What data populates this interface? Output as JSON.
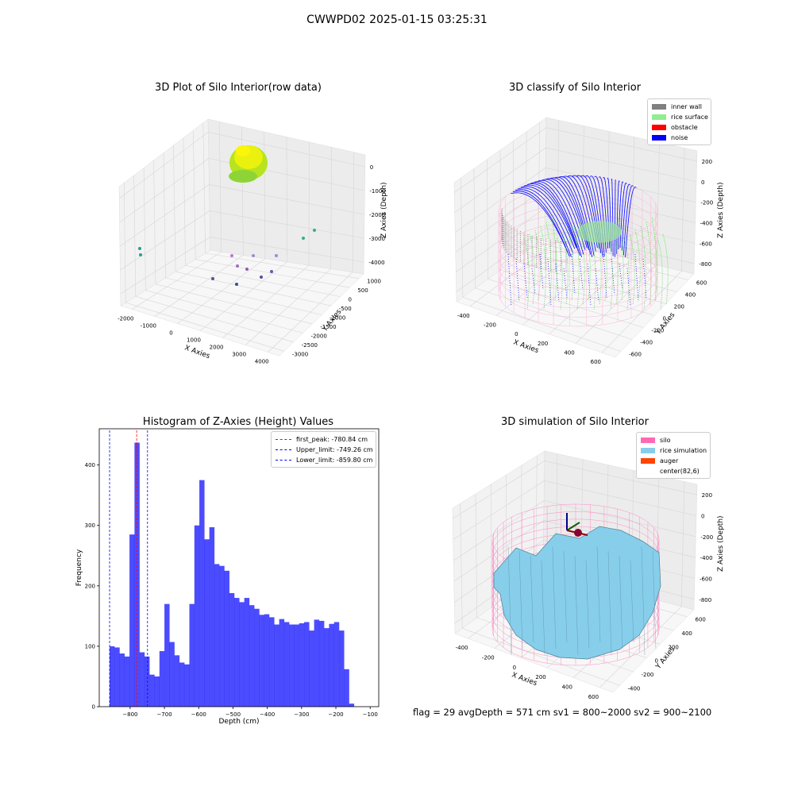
{
  "suptitle": "CWWPD02 2025-01-15 03:25:31",
  "panels": {
    "raw": {
      "title": "3D Plot of Silo Interior(row data)",
      "xlabel": "X Axies",
      "ylabel": "Y Axies",
      "zlabel": "Z Axies (Depth)",
      "xticks": [
        "-2000",
        "-1000",
        "0",
        "1000",
        "2000",
        "3000",
        "4000"
      ],
      "yticks": [
        "1000",
        "500",
        "0",
        "-500",
        "-1000",
        "-1500",
        "-2000",
        "-2500",
        "-3000"
      ],
      "zticks": [
        "0",
        "-1000",
        "-2000",
        "-3000",
        "-4000"
      ]
    },
    "classify": {
      "title": "3D classify of Silo Interior",
      "xlabel": "X Axies",
      "ylabel": "Y Axies",
      "zlabel": "Z Axies (Depth)",
      "xticks": [
        "-400",
        "-200",
        "0",
        "200",
        "400",
        "600"
      ],
      "yticks": [
        "600",
        "400",
        "200",
        "0",
        "-200",
        "-400",
        "-600"
      ],
      "zticks": [
        "200",
        "0",
        "-200",
        "-400",
        "-600",
        "-800"
      ],
      "legend": [
        {
          "label": "inner wall",
          "color": "#808080"
        },
        {
          "label": "rice surface",
          "color": "#90ee90"
        },
        {
          "label": "obstacle",
          "color": "#ff0000"
        },
        {
          "label": "noise",
          "color": "#0000ff"
        }
      ]
    },
    "simulation": {
      "title": "3D simulation of Silo Interior",
      "xlabel": "X Axies",
      "ylabel": "Y Axies",
      "zlabel": "Z Axies (Depth)",
      "xticks": [
        "-400",
        "-200",
        "0",
        "200",
        "400",
        "600"
      ],
      "yticks": [
        "600",
        "400",
        "200",
        "0",
        "-200",
        "-400"
      ],
      "zticks": [
        "200",
        "0",
        "-200",
        "-400",
        "-600",
        "-800"
      ],
      "legend": [
        {
          "label": "silo",
          "color": "#ff69b4"
        },
        {
          "label": "rice simulation",
          "color": "#87ceeb"
        },
        {
          "label": "auger",
          "color": "#ff4500"
        },
        {
          "label": "center(82,6)",
          "color": ""
        }
      ]
    }
  },
  "chart_data": {
    "type": "bar",
    "title": "Histogram of Z-Axies (Height) Values",
    "xlabel": "Depth (cm)",
    "ylabel": "Frequency",
    "xlim": [
      -890,
      -75
    ],
    "ylim": [
      0,
      460
    ],
    "xticks": [
      -800,
      -700,
      -600,
      -500,
      -400,
      -300,
      -200,
      -100
    ],
    "yticks": [
      0,
      100,
      200,
      300,
      400
    ],
    "bar_color": "#0000ff",
    "bin_start": -860,
    "bin_width": 14.55,
    "values": [
      100,
      98,
      88,
      83,
      285,
      437,
      90,
      83,
      53,
      50,
      92,
      170,
      107,
      85,
      73,
      70,
      170,
      300,
      375,
      277,
      297,
      236,
      233,
      225,
      188,
      180,
      173,
      180,
      168,
      162,
      152,
      153,
      148,
      136,
      145,
      140,
      136,
      136,
      138,
      140,
      126,
      144,
      142,
      130,
      137,
      140,
      126,
      62,
      5
    ],
    "lines": [
      {
        "label": "first_peak: -780.84 cm",
        "x": -780.84,
        "color": "#ff0000"
      },
      {
        "label": "Upper_limit: -749.26 cm",
        "x": -749.26,
        "color": "#0000ff"
      },
      {
        "label": "Lower_limit: -859.80 cm",
        "x": -859.8,
        "color": "#0000ff"
      }
    ]
  },
  "footer": "flag = 29  avgDepth = 571 cm  sv1 = 800~2000  sv2 = 900~2100"
}
